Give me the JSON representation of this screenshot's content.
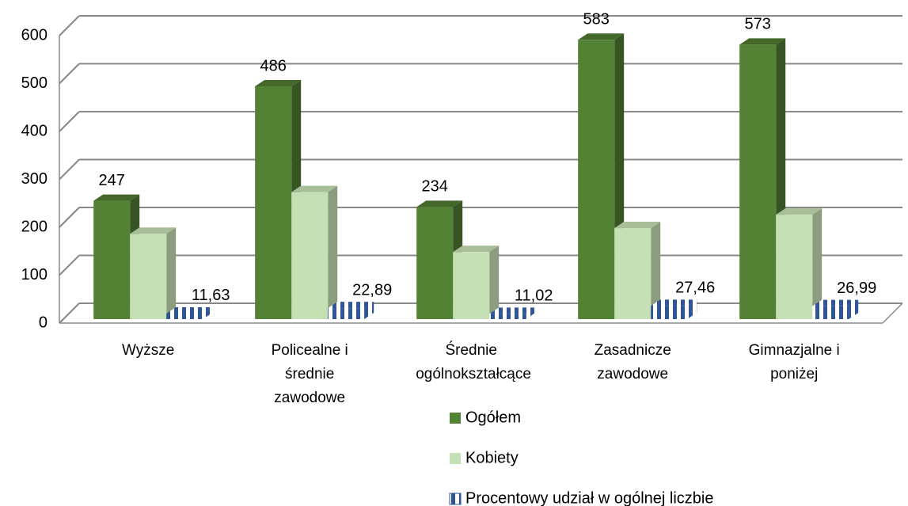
{
  "chart_data": {
    "type": "bar3d",
    "categories": [
      "Wyższe",
      "Policealne i średnie zawodowe",
      "Średnie ogólnokształcące",
      "Zasadnicze zawodowe",
      "Gimnazjalne i poniżej"
    ],
    "series": [
      {
        "name": "Ogółem",
        "color": "#548235",
        "values": [
          247,
          486,
          234,
          583,
          573
        ],
        "labeled": true
      },
      {
        "name": "Kobiety",
        "color": "#c5e0b4",
        "values": [
          178,
          265,
          140,
          190,
          218
        ],
        "labeled": false
      },
      {
        "name": "Procentowy udział w ogólnej liczbie",
        "color": "#2f5597",
        "pattern": true,
        "values": [
          11.63,
          22.89,
          11.02,
          27.46,
          26.99
        ],
        "value_labels": [
          "11,63",
          "22,89",
          "11,02",
          "27,46",
          "26,99"
        ],
        "labeled": true
      }
    ],
    "ylim": [
      0,
      600
    ],
    "yticks": [
      0,
      100,
      200,
      300,
      400,
      500,
      600
    ],
    "grid": true
  }
}
